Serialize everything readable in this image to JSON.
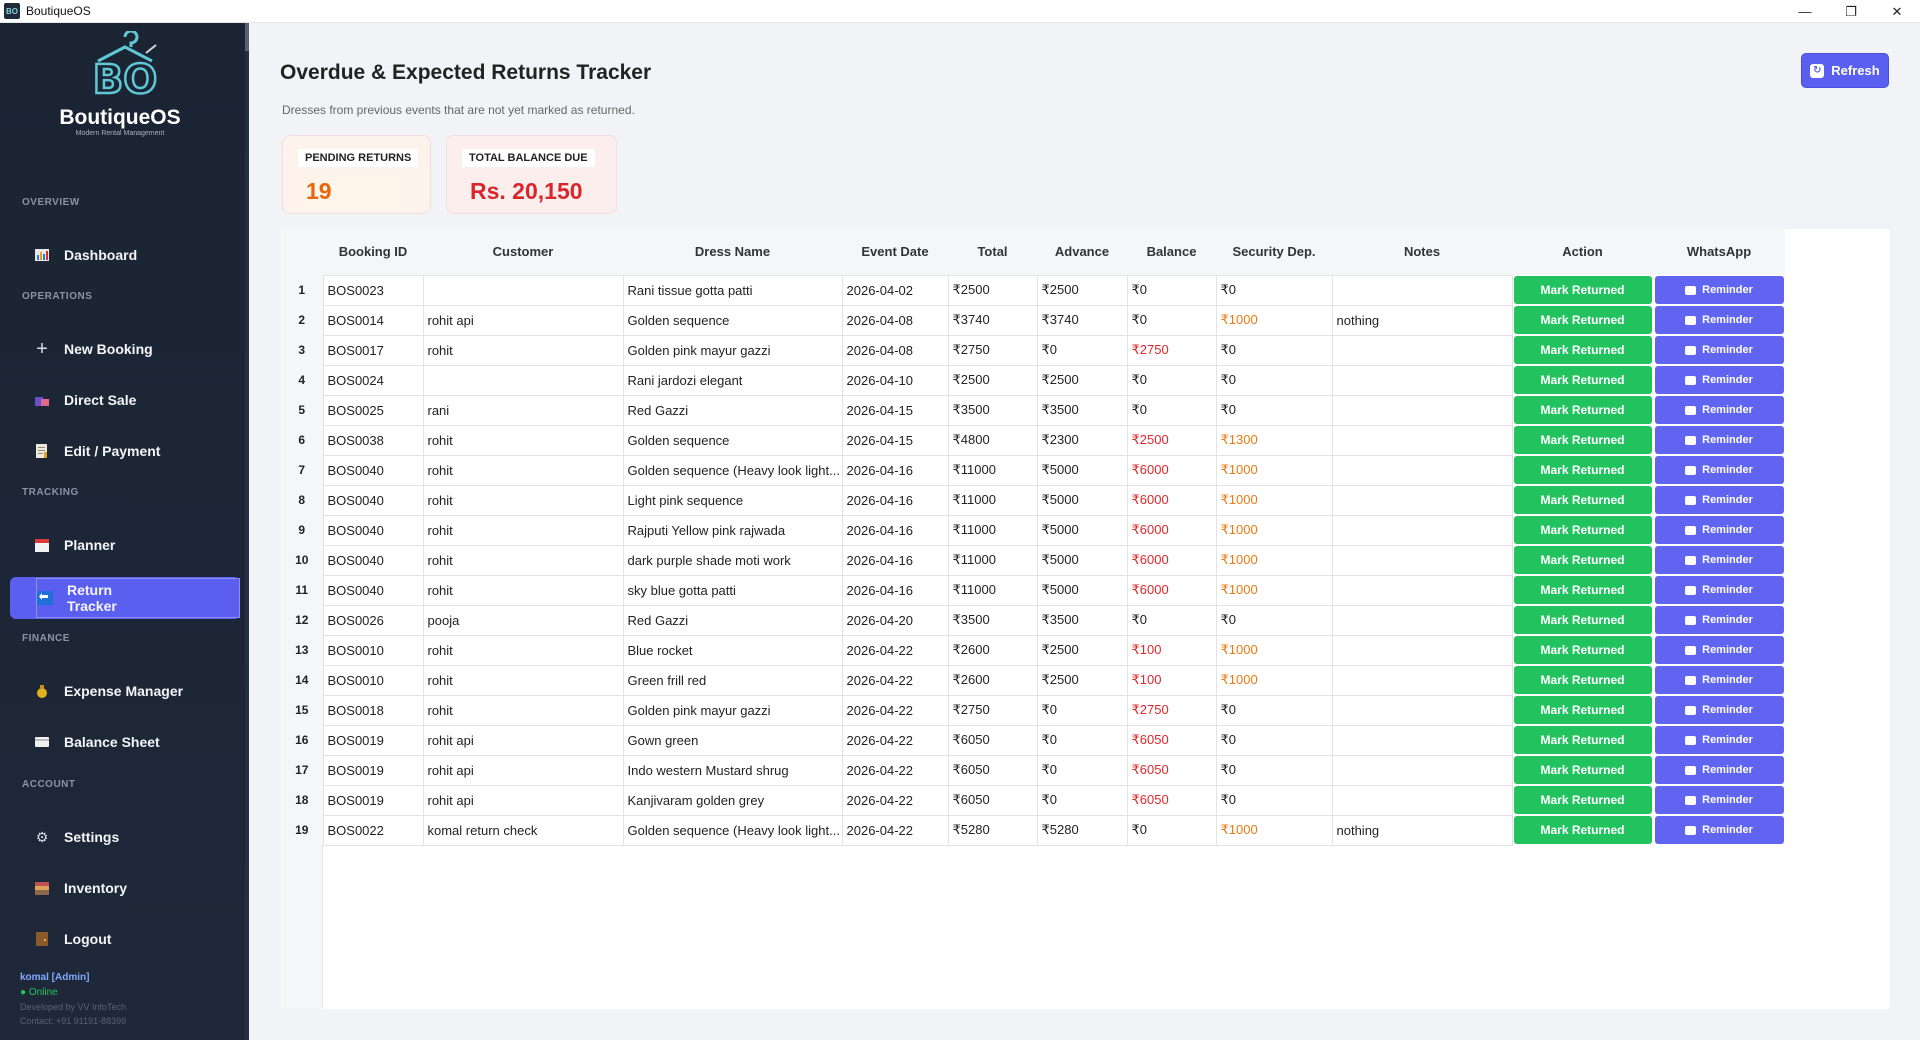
{
  "window": {
    "title": "BoutiqueOS",
    "minimize": "—",
    "maximize": "❐",
    "close": "✕"
  },
  "sidebar": {
    "brand": "BoutiqueOS",
    "tagline": "Modern Rental Management",
    "logo_text": "BO",
    "sections": {
      "overview": "OVERVIEW",
      "operations": "OPERATIONS",
      "tracking": "TRACKING",
      "finance": "FINANCE",
      "account": "ACCOUNT"
    },
    "items": {
      "dashboard": "Dashboard",
      "new_booking": "New Booking",
      "direct_sale": "Direct Sale",
      "edit_payment": "Edit / Payment",
      "planner": "Planner",
      "return_tracker": "Return Tracker",
      "expense_manager": "Expense Manager",
      "balance_sheet": "Balance Sheet",
      "settings": "Settings",
      "inventory": "Inventory",
      "logout": "Logout"
    },
    "user": "komal  [Admin]",
    "status": "● Online",
    "developer": "Developed by VV InfoTech",
    "contact": "Contact: +91 91191-88399"
  },
  "main": {
    "title": "Overdue & Expected Returns Tracker",
    "subtitle": "Dresses from previous events that are not yet marked as returned.",
    "refresh_label": "Refresh",
    "stats": {
      "pending_label": "PENDING RETURNS",
      "pending_value": "19",
      "balance_label": "TOTAL BALANCE DUE",
      "balance_value": "Rs. 20,150"
    },
    "table": {
      "headers": [
        "Booking ID",
        "Customer",
        "Dress Name",
        "Event Date",
        "Total",
        "Advance",
        "Balance",
        "Security Dep.",
        "Notes",
        "Action",
        "WhatsApp"
      ],
      "action_label": "Mark Returned",
      "reminder_label": "Reminder",
      "rows": [
        {
          "i": "1",
          "id": "BOS0023",
          "customer": "",
          "dress": "Rani tissue gotta patti",
          "date": "2026-04-02",
          "total": "₹2500",
          "advance": "₹2500",
          "balance": "₹0",
          "security": "₹0",
          "notes": ""
        },
        {
          "i": "2",
          "id": "BOS0014",
          "customer": "rohit api",
          "dress": "Golden sequence",
          "date": "2026-04-08",
          "total": "₹3740",
          "advance": "₹3740",
          "balance": "₹0",
          "security": "₹1000",
          "notes": "nothing"
        },
        {
          "i": "3",
          "id": "BOS0017",
          "customer": "rohit",
          "dress": "Golden pink mayur gazzi",
          "date": "2026-04-08",
          "total": "₹2750",
          "advance": "₹0",
          "balance": "₹2750",
          "security": "₹0",
          "notes": ""
        },
        {
          "i": "4",
          "id": "BOS0024",
          "customer": "",
          "dress": "Rani jardozi elegant",
          "date": "2026-04-10",
          "total": "₹2500",
          "advance": "₹2500",
          "balance": "₹0",
          "security": "₹0",
          "notes": ""
        },
        {
          "i": "5",
          "id": "BOS0025",
          "customer": "rani",
          "dress": "Red Gazzi",
          "date": "2026-04-15",
          "total": "₹3500",
          "advance": "₹3500",
          "balance": "₹0",
          "security": "₹0",
          "notes": ""
        },
        {
          "i": "6",
          "id": "BOS0038",
          "customer": "rohit",
          "dress": "Golden sequence",
          "date": "2026-04-15",
          "total": "₹4800",
          "advance": "₹2300",
          "balance": "₹2500",
          "security": "₹1300",
          "notes": ""
        },
        {
          "i": "7",
          "id": "BOS0040",
          "customer": "rohit",
          "dress": "Golden sequence (Heavy look light...",
          "date": "2026-04-16",
          "total": "₹11000",
          "advance": "₹5000",
          "balance": "₹6000",
          "security": "₹1000",
          "notes": ""
        },
        {
          "i": "8",
          "id": "BOS0040",
          "customer": "rohit",
          "dress": "Light pink sequence",
          "date": "2026-04-16",
          "total": "₹11000",
          "advance": "₹5000",
          "balance": "₹6000",
          "security": "₹1000",
          "notes": ""
        },
        {
          "i": "9",
          "id": "BOS0040",
          "customer": "rohit",
          "dress": "Rajputi Yellow pink rajwada",
          "date": "2026-04-16",
          "total": "₹11000",
          "advance": "₹5000",
          "balance": "₹6000",
          "security": "₹1000",
          "notes": ""
        },
        {
          "i": "10",
          "id": "BOS0040",
          "customer": "rohit",
          "dress": "dark purple shade moti work",
          "date": "2026-04-16",
          "total": "₹11000",
          "advance": "₹5000",
          "balance": "₹6000",
          "security": "₹1000",
          "notes": ""
        },
        {
          "i": "11",
          "id": "BOS0040",
          "customer": "rohit",
          "dress": "sky blue gotta patti",
          "date": "2026-04-16",
          "total": "₹11000",
          "advance": "₹5000",
          "balance": "₹6000",
          "security": "₹1000",
          "notes": ""
        },
        {
          "i": "12",
          "id": "BOS0026",
          "customer": "pooja",
          "dress": "Red Gazzi",
          "date": "2026-04-20",
          "total": "₹3500",
          "advance": "₹3500",
          "balance": "₹0",
          "security": "₹0",
          "notes": ""
        },
        {
          "i": "13",
          "id": "BOS0010",
          "customer": "rohit",
          "dress": "Blue rocket",
          "date": "2026-04-22",
          "total": "₹2600",
          "advance": "₹2500",
          "balance": "₹100",
          "security": "₹1000",
          "notes": ""
        },
        {
          "i": "14",
          "id": "BOS0010",
          "customer": "rohit",
          "dress": "Green frill red",
          "date": "2026-04-22",
          "total": "₹2600",
          "advance": "₹2500",
          "balance": "₹100",
          "security": "₹1000",
          "notes": ""
        },
        {
          "i": "15",
          "id": "BOS0018",
          "customer": "rohit",
          "dress": "Golden pink mayur gazzi",
          "date": "2026-04-22",
          "total": "₹2750",
          "advance": "₹0",
          "balance": "₹2750",
          "security": "₹0",
          "notes": ""
        },
        {
          "i": "16",
          "id": "BOS0019",
          "customer": "rohit api",
          "dress": "Gown green",
          "date": "2026-04-22",
          "total": "₹6050",
          "advance": "₹0",
          "balance": "₹6050",
          "security": "₹0",
          "notes": ""
        },
        {
          "i": "17",
          "id": "BOS0019",
          "customer": "rohit api",
          "dress": "Indo western Mustard shrug",
          "date": "2026-04-22",
          "total": "₹6050",
          "advance": "₹0",
          "balance": "₹6050",
          "security": "₹0",
          "notes": ""
        },
        {
          "i": "18",
          "id": "BOS0019",
          "customer": "rohit api",
          "dress": "Kanjivaram golden grey",
          "date": "2026-04-22",
          "total": "₹6050",
          "advance": "₹0",
          "balance": "₹6050",
          "security": "₹0",
          "notes": ""
        },
        {
          "i": "19",
          "id": "BOS0022",
          "customer": "komal return check",
          "dress": "Golden sequence (Heavy look light...",
          "date": "2026-04-22",
          "total": "₹5280",
          "advance": "₹5280",
          "balance": "₹0",
          "security": "₹1000",
          "notes": "nothing"
        }
      ]
    }
  },
  "colors": {
    "accent": "#5b5ff0",
    "success": "#22c35e",
    "danger": "#e0282c",
    "warning": "#ea7a13",
    "sidebar_bg": "#1b2433"
  }
}
